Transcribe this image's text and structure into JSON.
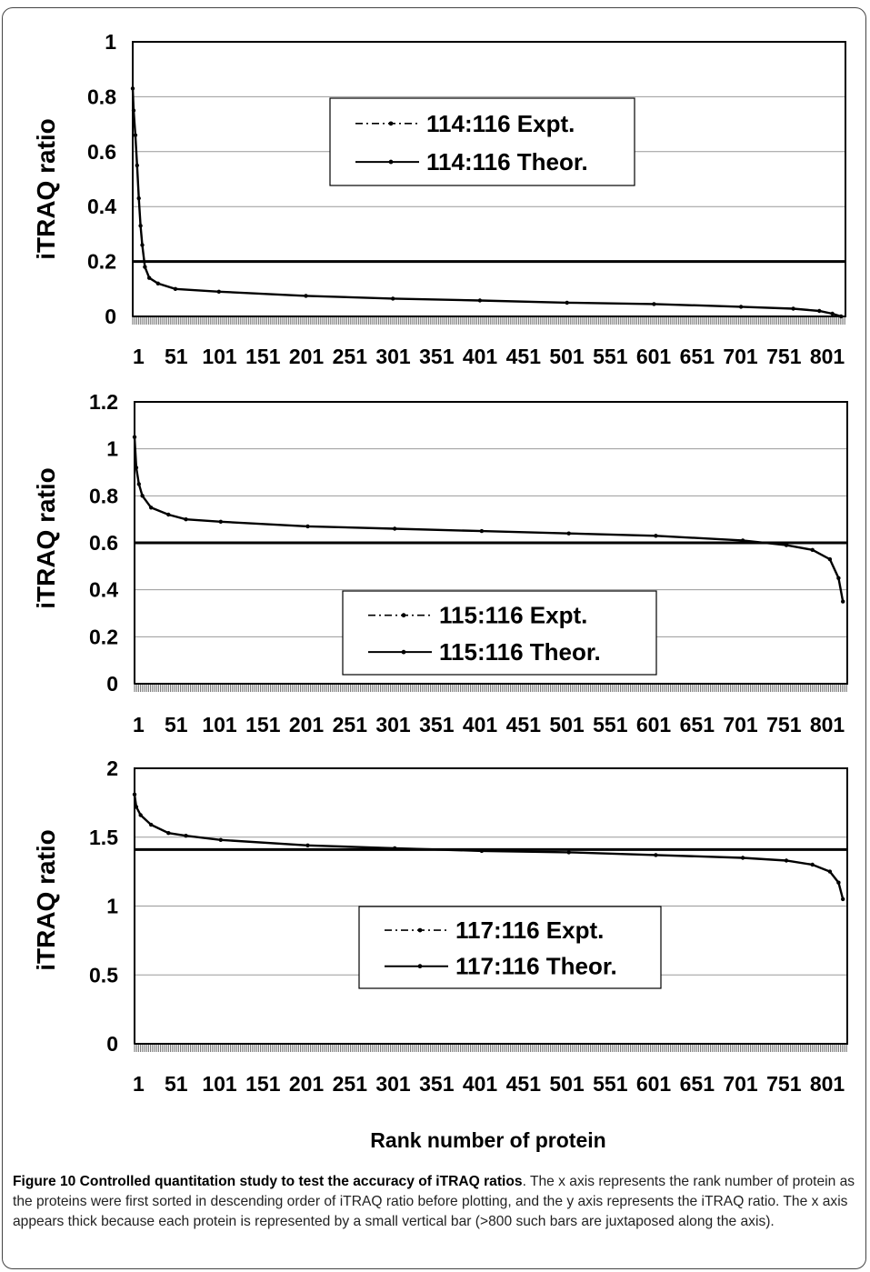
{
  "chart_data": [
    {
      "type": "line",
      "panel": "top",
      "ylabel": "iTRAQ ratio",
      "ylim": [
        0,
        1
      ],
      "yticks": [
        "0",
        "0.2",
        "0.4",
        "0.6",
        "0.8",
        "1"
      ],
      "xticks": [
        "1",
        "51",
        "101",
        "151",
        "201",
        "251",
        "301",
        "351",
        "401",
        "451",
        "501",
        "551",
        "601",
        "651",
        "701",
        "751",
        "801"
      ],
      "xlim": [
        1,
        820
      ],
      "grid": true,
      "legend_position": "upper-center",
      "series": [
        {
          "name": "114:116 Expt.",
          "style": "dash-dot with markers",
          "x": [
            1,
            2,
            4,
            6,
            8,
            10,
            12,
            15,
            20,
            30,
            50,
            100,
            200,
            300,
            400,
            500,
            600,
            700,
            760,
            790,
            805,
            815
          ],
          "y": [
            0.83,
            0.75,
            0.66,
            0.55,
            0.43,
            0.33,
            0.26,
            0.18,
            0.14,
            0.12,
            0.1,
            0.09,
            0.075,
            0.065,
            0.058,
            0.05,
            0.045,
            0.035,
            0.028,
            0.02,
            0.01,
            0.0
          ]
        },
        {
          "name": "114:116 Theor.",
          "style": "solid",
          "x": [
            1,
            820
          ],
          "y": [
            0.2,
            0.2
          ]
        }
      ]
    },
    {
      "type": "line",
      "panel": "middle",
      "ylabel": "iTRAQ ratio",
      "ylim": [
        0,
        1.2
      ],
      "yticks": [
        "0",
        "0.2",
        "0.4",
        "0.6",
        "0.8",
        "1",
        "1.2"
      ],
      "xticks": [
        "1",
        "51",
        "101",
        "151",
        "201",
        "251",
        "301",
        "351",
        "401",
        "451",
        "501",
        "551",
        "601",
        "651",
        "701",
        "751",
        "801"
      ],
      "xlim": [
        1,
        820
      ],
      "grid": true,
      "legend_position": "lower-center",
      "series": [
        {
          "name": "115:116 Expt.",
          "style": "dash-dot with markers",
          "x": [
            1,
            3,
            6,
            10,
            20,
            40,
            60,
            100,
            200,
            300,
            400,
            500,
            600,
            700,
            750,
            780,
            800,
            810,
            815
          ],
          "y": [
            1.05,
            0.92,
            0.85,
            0.8,
            0.75,
            0.72,
            0.7,
            0.69,
            0.67,
            0.66,
            0.65,
            0.64,
            0.63,
            0.61,
            0.59,
            0.57,
            0.53,
            0.45,
            0.35
          ]
        },
        {
          "name": "115:116 Theor.",
          "style": "solid",
          "x": [
            1,
            820
          ],
          "y": [
            0.6,
            0.6
          ]
        }
      ]
    },
    {
      "type": "line",
      "panel": "bottom",
      "ylabel": "iTRAQ ratio",
      "ylim": [
        0,
        2
      ],
      "yticks": [
        "0",
        "0.5",
        "1",
        "1.5",
        "2"
      ],
      "xticks": [
        "1",
        "51",
        "101",
        "151",
        "201",
        "251",
        "301",
        "351",
        "401",
        "451",
        "501",
        "551",
        "601",
        "651",
        "701",
        "751",
        "801"
      ],
      "xlim": [
        1,
        820
      ],
      "xlabel": "Rank number of protein",
      "grid": true,
      "legend_position": "lower-center",
      "series": [
        {
          "name": "117:116 Expt.",
          "style": "dash-dot with markers",
          "x": [
            1,
            3,
            8,
            20,
            40,
            60,
            100,
            200,
            300,
            400,
            500,
            600,
            700,
            750,
            780,
            800,
            810,
            815
          ],
          "y": [
            1.81,
            1.72,
            1.66,
            1.59,
            1.53,
            1.51,
            1.48,
            1.44,
            1.42,
            1.4,
            1.39,
            1.37,
            1.35,
            1.33,
            1.3,
            1.25,
            1.17,
            1.05
          ]
        },
        {
          "name": "117:116 Theor.",
          "style": "solid",
          "x": [
            1,
            820
          ],
          "y": [
            1.41,
            1.41
          ]
        }
      ]
    }
  ],
  "caption": {
    "label": "Figure 10 Controlled quantitation study to test the accuracy of iTRAQ ratios",
    "text": ". The x axis represents the rank number of protein as the proteins were first sorted in descending order of iTRAQ ratio before plotting, and the y axis represents the iTRAQ ratio. The x axis appears thick because each protein is represented by a small vertical bar (>800 such bars are juxtaposed along the axis)."
  }
}
